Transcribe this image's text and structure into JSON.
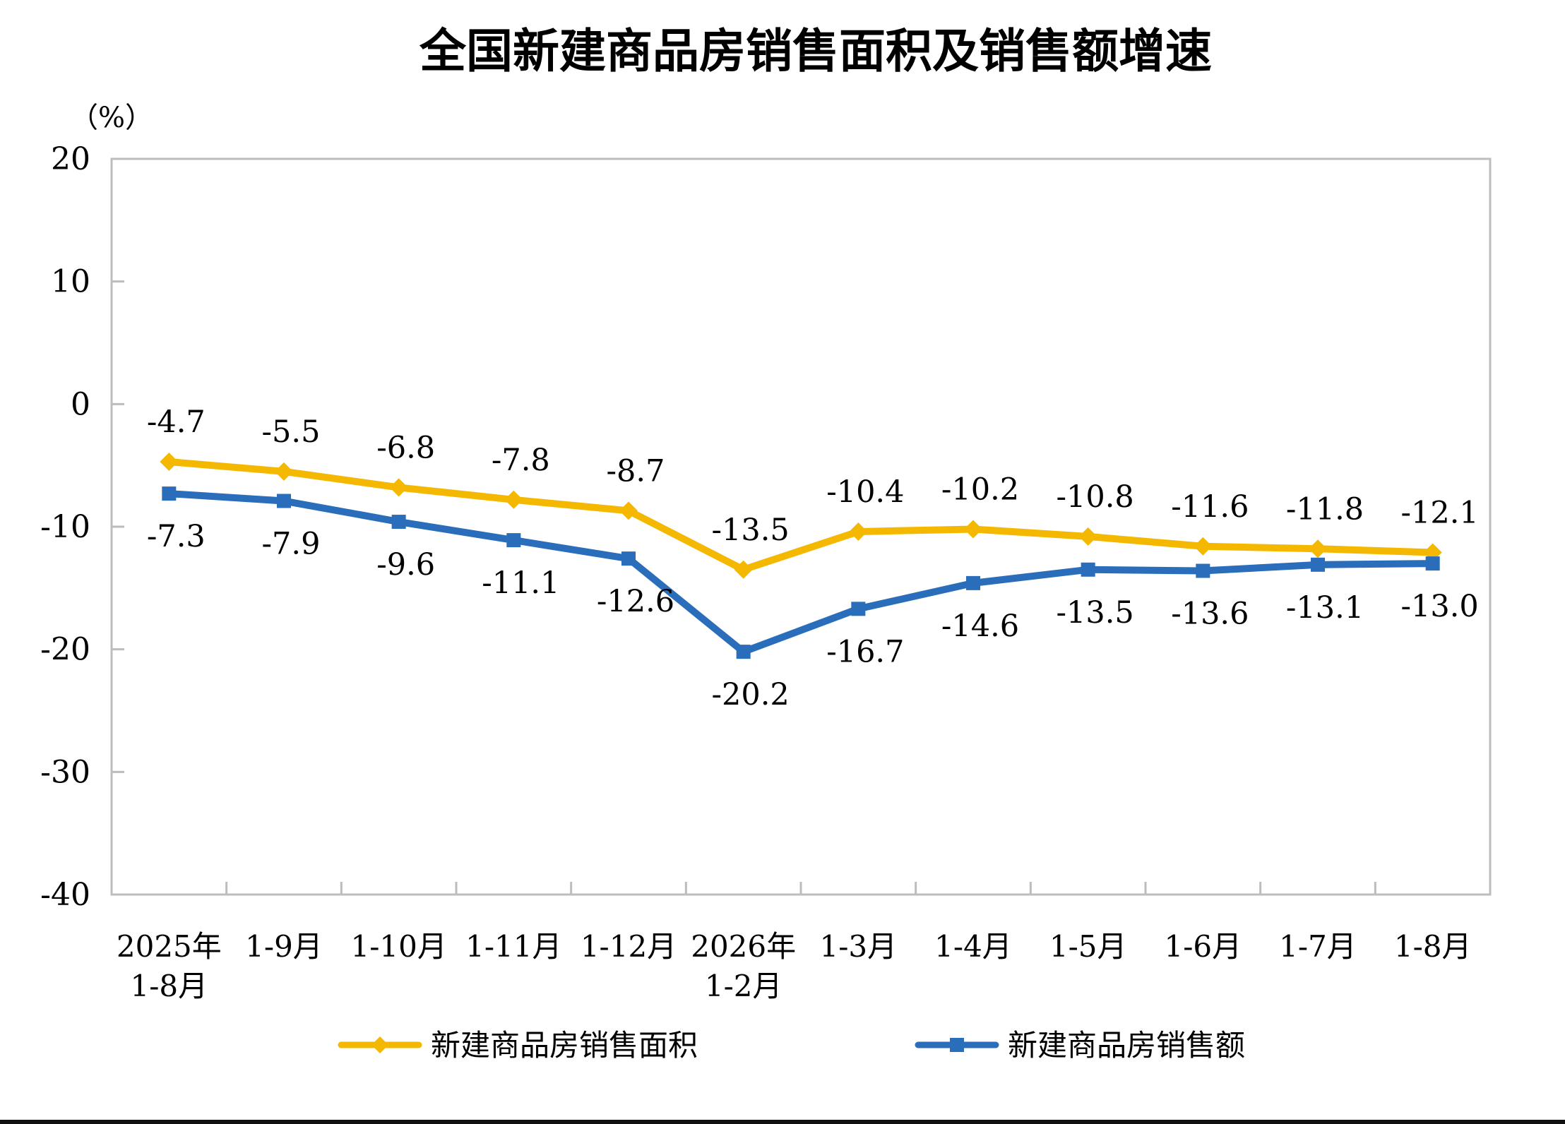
{
  "chart_data": {
    "type": "line",
    "title": "全国新建商品房销售面积及销售额增速",
    "unit_label": "（%）",
    "ylim": [
      -40,
      20
    ],
    "yticks": [
      20,
      10,
      0,
      -10,
      -20,
      -30,
      -40
    ],
    "categories": [
      [
        "2025年",
        "1-8月"
      ],
      [
        "1-9月"
      ],
      [
        "1-10月"
      ],
      [
        "1-11月"
      ],
      [
        "1-12月"
      ],
      [
        "2026年",
        "1-2月"
      ],
      [
        "1-3月"
      ],
      [
        "1-4月"
      ],
      [
        "1-5月"
      ],
      [
        "1-6月"
      ],
      [
        "1-7月"
      ],
      [
        "1-8月"
      ]
    ],
    "series": [
      {
        "name": "新建商品房销售面积",
        "color": "#F5B800",
        "marker": "diamond",
        "values": [
          -4.7,
          -5.5,
          -6.8,
          -7.8,
          -8.7,
          -13.5,
          -10.4,
          -10.2,
          -10.8,
          -11.6,
          -11.8,
          -12.1
        ],
        "labels": [
          "-4.7",
          "-5.5",
          "-6.8",
          "-7.8",
          "-8.7",
          "-13.5",
          "-10.4",
          "-10.2",
          "-10.8",
          "-11.6",
          "-11.8",
          "-12.1"
        ],
        "label_position": "above"
      },
      {
        "name": "新建商品房销售额",
        "color": "#2A6EBB",
        "marker": "square",
        "values": [
          -7.3,
          -7.9,
          -9.6,
          -11.1,
          -12.6,
          -20.2,
          -16.7,
          -14.6,
          -13.5,
          -13.6,
          -13.1,
          -13.0
        ],
        "labels": [
          "-7.3",
          "-7.9",
          "-9.6",
          "-11.1",
          "-12.6",
          "-20.2",
          "-16.7",
          "-14.6",
          "-13.5",
          "-13.6",
          "-13.1",
          "-13.0"
        ],
        "label_position": "below"
      }
    ],
    "legend_position": "bottom",
    "grid": false
  }
}
